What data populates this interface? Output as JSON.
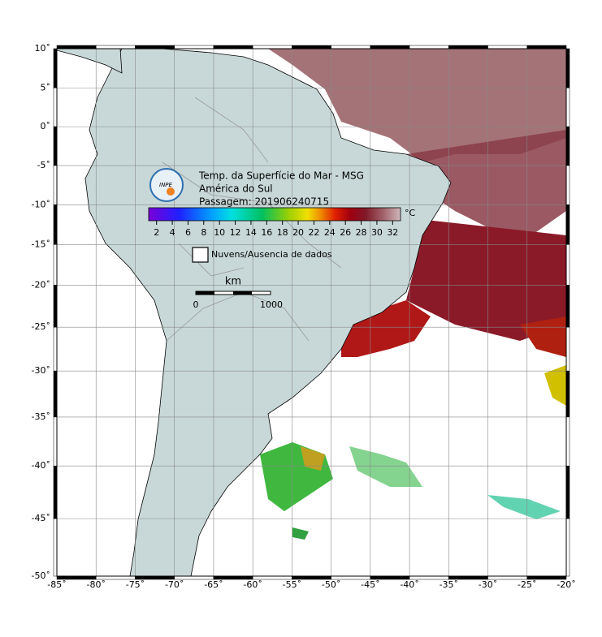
{
  "map": {
    "title": "Temp. da Superfície do Mar - MSG",
    "region": "América do Sul",
    "pass": "Passagem: 201906240715",
    "logo": "INPE",
    "lonlim": [
      -85,
      -20
    ],
    "latlim": [
      -50,
      10
    ],
    "lonticks": [
      {
        "value": -85,
        "label": "-85˚"
      },
      {
        "value": -80,
        "label": "-80˚"
      },
      {
        "value": -75,
        "label": "-75˚"
      },
      {
        "value": -70,
        "label": "-70˚"
      },
      {
        "value": -65,
        "label": "-65˚"
      },
      {
        "value": -60,
        "label": "-60˚"
      },
      {
        "value": -55,
        "label": "-55˚"
      },
      {
        "value": -50,
        "label": "-50˚"
      },
      {
        "value": -45,
        "label": "-45˚"
      },
      {
        "value": -40,
        "label": "-40˚"
      },
      {
        "value": -35,
        "label": "-35˚"
      },
      {
        "value": -30,
        "label": "-30˚"
      },
      {
        "value": -25,
        "label": "-25˚"
      },
      {
        "value": -20,
        "label": "-20˚"
      }
    ],
    "latticks": [
      {
        "value": 10,
        "label": "10˚"
      },
      {
        "value": 5,
        "label": "5˚"
      },
      {
        "value": 0,
        "label": "0˚"
      },
      {
        "value": -5,
        "label": "-5˚"
      },
      {
        "value": -10,
        "label": "-10˚"
      },
      {
        "value": -15,
        "label": "-15˚"
      },
      {
        "value": -20,
        "label": "-20˚"
      },
      {
        "value": -25,
        "label": "-25˚"
      },
      {
        "value": -30,
        "label": "-30˚"
      },
      {
        "value": -35,
        "label": "-35˚"
      },
      {
        "value": -40,
        "label": "-40˚"
      },
      {
        "value": -45,
        "label": "-45˚"
      },
      {
        "value": -50,
        "label": "-50˚"
      }
    ],
    "colorbar": {
      "lim": [
        1,
        33
      ],
      "ticks": [
        2,
        4,
        6,
        8,
        10,
        12,
        14,
        16,
        18,
        20,
        22,
        24,
        26,
        28,
        30,
        32
      ],
      "unit": "°C"
    },
    "legend": "Nuvens/Ausencia de dados",
    "scalebar": {
      "unit": "km",
      "start": 0,
      "end": 1000
    }
  }
}
